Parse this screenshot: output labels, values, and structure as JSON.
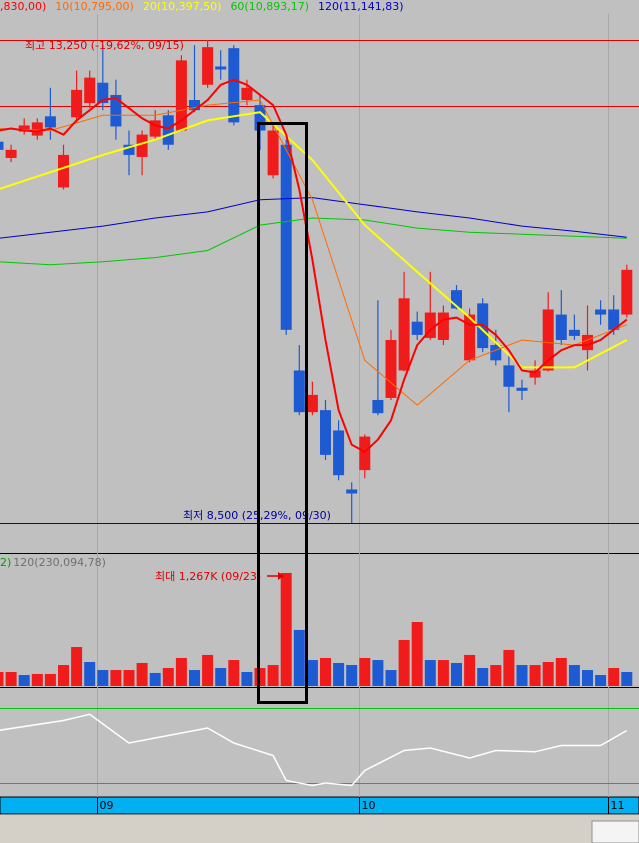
{
  "chart_data": {
    "type": "candlestick",
    "categories": [
      null,
      null,
      null,
      null,
      null,
      null,
      null,
      null,
      "09",
      null,
      null,
      null,
      null,
      null,
      null,
      null,
      null,
      null,
      null,
      null,
      null,
      null,
      null,
      null,
      null,
      null,
      null,
      null,
      "10",
      null,
      null,
      null,
      null,
      null,
      null,
      null,
      null,
      null,
      null,
      null,
      null,
      null,
      null,
      null,
      null,
      null,
      null,
      "11",
      null
    ],
    "open": [
      12250,
      12090,
      12350,
      12310,
      12500,
      11800,
      12490,
      12630,
      12830,
      12710,
      12220,
      12100,
      12300,
      12510,
      12360,
      12660,
      12810,
      12990,
      13170,
      12660,
      12610,
      11920,
      12220,
      10000,
      9590,
      9610,
      9410,
      8830,
      9020,
      9710,
      9730,
      10000,
      10480,
      10320,
      10300,
      10790,
      10100,
      10660,
      10250,
      10050,
      9830,
      9930,
      10000,
      10550,
      10400,
      10200,
      10600,
      10600,
      10550
    ],
    "high": [
      12320,
      12220,
      12480,
      12480,
      12780,
      12220,
      12950,
      12950,
      13200,
      12860,
      12360,
      12360,
      12560,
      12560,
      13100,
      13200,
      13250,
      13150,
      13200,
      12860,
      12710,
      12410,
      12270,
      10250,
      9890,
      9710,
      9510,
      8900,
      9370,
      10690,
      10400,
      10970,
      10580,
      10970,
      10640,
      10840,
      10610,
      10710,
      10400,
      10150,
      9910,
      10100,
      10770,
      10790,
      10550,
      10640,
      10690,
      10740,
      11040
    ],
    "low": [
      12070,
      12050,
      12320,
      12270,
      12270,
      11780,
      12440,
      12580,
      12560,
      12270,
      11920,
      11920,
      12270,
      12170,
      12350,
      12540,
      12780,
      12860,
      12410,
      12610,
      12170,
      11890,
      10350,
      9560,
      9560,
      9120,
      8920,
      8500,
      8940,
      9560,
      9710,
      9990,
      10300,
      10300,
      10250,
      10600,
      10080,
      10180,
      10050,
      9590,
      9710,
      9860,
      9990,
      10250,
      10300,
      10000,
      10450,
      10350,
      10520
    ],
    "close": [
      12170,
      12170,
      12410,
      12440,
      12390,
      12120,
      12760,
      12880,
      12630,
      12400,
      12120,
      12320,
      12460,
      12220,
      13050,
      12560,
      13180,
      12960,
      12440,
      12780,
      12360,
      12360,
      10400,
      9590,
      9760,
      9170,
      8970,
      8790,
      9350,
      9580,
      10300,
      10710,
      10350,
      10570,
      10570,
      10610,
      10550,
      10220,
      10100,
      9840,
      9800,
      10000,
      10600,
      10300,
      10340,
      10350,
      10550,
      10400,
      10990
    ],
    "up_color": "#f01c1c",
    "down_color": "#1e5ad2",
    "ylim": [
      8205,
      13506
    ],
    "ref_line": 12600,
    "series": [
      {
        "name": ",830,00)",
        "color": "#ff0000",
        "x": [
          0,
          1,
          2,
          3,
          4,
          5,
          6,
          7,
          8,
          9,
          10,
          11,
          12,
          13,
          14,
          15,
          16,
          17,
          18,
          19,
          20,
          21,
          22,
          23,
          24,
          25,
          26,
          27,
          28,
          29,
          30,
          31,
          32,
          33,
          34,
          35,
          36,
          37,
          38,
          39,
          40,
          41,
          42,
          43,
          44,
          45,
          46,
          47,
          48
        ],
        "values": [
          12360,
          12380,
          12360,
          12350,
          12380,
          12320,
          12460,
          12560,
          12660,
          12680,
          12580,
          12480,
          12410,
          12380,
          12460,
          12560,
          12660,
          12810,
          12860,
          12810,
          12710,
          12610,
          12320,
          11780,
          11090,
          10300,
          9610,
          9270,
          9200,
          9320,
          9510,
          9910,
          10250,
          10400,
          10500,
          10520,
          10450,
          10450,
          10350,
          10200,
          10000,
          9980,
          10100,
          10200,
          10250,
          10250,
          10300,
          10400,
          10500
        ]
      },
      {
        "name": "10(10,795,00)",
        "color": "#ff6a00",
        "x": [
          0,
          4,
          8,
          12,
          16,
          20,
          24,
          28,
          32,
          36,
          40,
          44,
          48
        ],
        "values": [
          12380,
          12360,
          12510,
          12510,
          12610,
          12660,
          11680,
          10100,
          9660,
          10100,
          10300,
          10250,
          10450
        ]
      },
      {
        "name": "20(10,397,50)",
        "color": "#ffff00",
        "x": [
          0,
          4,
          8,
          12,
          16,
          20,
          24,
          28,
          32,
          36,
          40,
          44,
          48
        ],
        "values": [
          11780,
          11950,
          12120,
          12270,
          12460,
          12540,
          12070,
          11430,
          10970,
          10520,
          10030,
          10030,
          10300
        ]
      },
      {
        "name": "60(10,893,17)",
        "color": "#00c800",
        "x": [
          0,
          4,
          8,
          12,
          16,
          20,
          24,
          28,
          32,
          36,
          40,
          44,
          48
        ],
        "values": [
          11070,
          11040,
          11070,
          11110,
          11180,
          11430,
          11500,
          11480,
          11400,
          11360,
          11340,
          11320,
          11300
        ]
      },
      {
        "name": "120(11,141,83)",
        "color": "#0000c8",
        "x": [
          0,
          4,
          8,
          12,
          16,
          20,
          24,
          28,
          32,
          36,
          40,
          44,
          48
        ],
        "values": [
          11300,
          11360,
          11420,
          11500,
          11560,
          11680,
          11700,
          11630,
          11560,
          11500,
          11420,
          11370,
          11310
        ]
      }
    ],
    "high_label": "최고 13,250 (-19,62%, 09/15)",
    "low_label": "최저 8,500 (25,29%, 09/30)",
    "volume": [
      157,
      157,
      123,
      135,
      135,
      235,
      437,
      269,
      179,
      179,
      179,
      258,
      146,
      202,
      314,
      179,
      348,
      202,
      291,
      157,
      202,
      235,
      1267,
      628,
      291,
      314,
      258,
      235,
      314,
      291,
      179,
      516,
      717,
      291,
      291,
      258,
      348,
      202,
      235,
      404,
      235,
      235,
      269,
      314,
      235,
      179,
      123,
      202,
      157
    ],
    "volume_ylim": [
      0,
      1457
    ],
    "volume_legend": [
      {
        "text": "2)",
        "color": "#00a000"
      },
      {
        "text": "120(230,094,78)",
        "color": "#707070"
      }
    ],
    "max_volume_label": "최대 1,267K (09/23)",
    "indicator": {
      "x": [
        0,
        5,
        7,
        10,
        13,
        16,
        18,
        21,
        22,
        24,
        25,
        27,
        28,
        31,
        33,
        36,
        38,
        41,
        43,
        46,
        48
      ],
      "values": [
        62,
        70,
        75,
        52,
        58,
        64,
        52,
        42,
        22,
        18,
        20,
        18,
        30,
        46,
        48,
        40,
        46,
        45,
        50,
        50,
        62
      ],
      "ylim": [
        0,
        100
      ],
      "levels": [
        20,
        80
      ],
      "color": "#ffffff",
      "level_color": "#00c800"
    }
  }
}
